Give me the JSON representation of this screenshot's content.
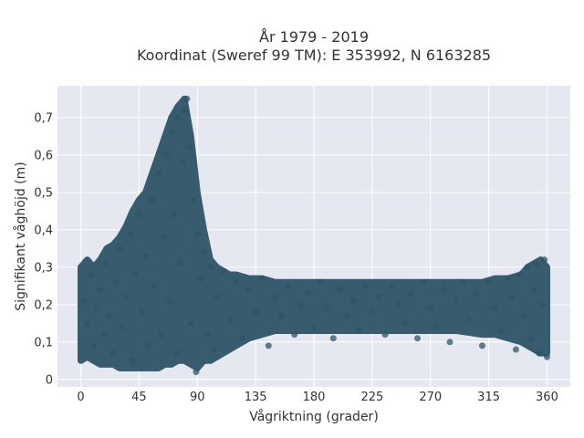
{
  "chart_data": {
    "type": "scatter",
    "title": "År 1979 - 2019",
    "subtitle": "Koordinat (Sweref 99 TM): E 353992, N 6163285",
    "xlabel": "Vågriktning (grader)",
    "ylabel": "Signifikant våghöjd (m)",
    "xlim": [
      -18,
      378
    ],
    "ylim": [
      -0.02,
      0.785
    ],
    "xticks": [
      0,
      45,
      90,
      135,
      180,
      225,
      270,
      315,
      360
    ],
    "xtick_labels": [
      "0",
      "45",
      "90",
      "135",
      "180",
      "225",
      "270",
      "315",
      "360"
    ],
    "yticks": [
      0,
      0.1,
      0.2,
      0.3,
      0.4,
      0.5,
      0.6,
      0.7
    ],
    "ytick_labels": [
      "0",
      "0,1",
      "0,2",
      "0,3",
      "0,4",
      "0,5",
      "0,6",
      "0,7"
    ],
    "grid": true,
    "marker_color": "#2f5468",
    "background_color": "#e5e8f0",
    "envelope": {
      "x": [
        0,
        5,
        10,
        15,
        20,
        25,
        30,
        35,
        40,
        45,
        50,
        55,
        60,
        65,
        70,
        75,
        80,
        85,
        90,
        95,
        100,
        105,
        110,
        115,
        120,
        130,
        140,
        150,
        160,
        180,
        200,
        225,
        250,
        270,
        290,
        310,
        320,
        330,
        340,
        345,
        350,
        355,
        360
      ],
      "y_low": [
        0.05,
        0.06,
        0.05,
        0.04,
        0.04,
        0.04,
        0.03,
        0.03,
        0.03,
        0.03,
        0.03,
        0.03,
        0.03,
        0.04,
        0.04,
        0.05,
        0.05,
        0.04,
        0.03,
        0.05,
        0.05,
        0.06,
        0.07,
        0.08,
        0.09,
        0.11,
        0.12,
        0.13,
        0.13,
        0.13,
        0.13,
        0.13,
        0.13,
        0.13,
        0.13,
        0.12,
        0.12,
        0.11,
        0.1,
        0.09,
        0.08,
        0.07,
        0.07
      ],
      "y_high": [
        0.3,
        0.32,
        0.3,
        0.32,
        0.35,
        0.36,
        0.38,
        0.41,
        0.45,
        0.48,
        0.5,
        0.55,
        0.6,
        0.65,
        0.7,
        0.73,
        0.75,
        0.65,
        0.5,
        0.4,
        0.32,
        0.3,
        0.29,
        0.28,
        0.28,
        0.27,
        0.27,
        0.26,
        0.26,
        0.26,
        0.26,
        0.26,
        0.26,
        0.26,
        0.26,
        0.26,
        0.27,
        0.27,
        0.28,
        0.3,
        0.31,
        0.32,
        0.3
      ]
    },
    "points": [
      {
        "x": 2,
        "y": 0.21
      },
      {
        "x": 5,
        "y": 0.15
      },
      {
        "x": 8,
        "y": 0.28
      },
      {
        "x": 10,
        "y": 0.09
      },
      {
        "x": 12,
        "y": 0.19
      },
      {
        "x": 15,
        "y": 0.24
      },
      {
        "x": 18,
        "y": 0.12
      },
      {
        "x": 20,
        "y": 0.31
      },
      {
        "x": 22,
        "y": 0.17
      },
      {
        "x": 25,
        "y": 0.07
      },
      {
        "x": 27,
        "y": 0.26
      },
      {
        "x": 30,
        "y": 0.35
      },
      {
        "x": 32,
        "y": 0.14
      },
      {
        "x": 35,
        "y": 0.22
      },
      {
        "x": 38,
        "y": 0.39
      },
      {
        "x": 40,
        "y": 0.05
      },
      {
        "x": 42,
        "y": 0.28
      },
      {
        "x": 45,
        "y": 0.44
      },
      {
        "x": 47,
        "y": 0.18
      },
      {
        "x": 50,
        "y": 0.33
      },
      {
        "x": 52,
        "y": 0.09
      },
      {
        "x": 55,
        "y": 0.48
      },
      {
        "x": 57,
        "y": 0.25
      },
      {
        "x": 60,
        "y": 0.55
      },
      {
        "x": 62,
        "y": 0.12
      },
      {
        "x": 64,
        "y": 0.38
      },
      {
        "x": 66,
        "y": 0.6
      },
      {
        "x": 68,
        "y": 0.21
      },
      {
        "x": 70,
        "y": 0.66
      },
      {
        "x": 72,
        "y": 0.44
      },
      {
        "x": 74,
        "y": 0.07
      },
      {
        "x": 75,
        "y": 0.7
      },
      {
        "x": 77,
        "y": 0.31
      },
      {
        "x": 79,
        "y": 0.58
      },
      {
        "x": 80,
        "y": 0.72
      },
      {
        "x": 82,
        "y": 0.75
      },
      {
        "x": 84,
        "y": 0.62
      },
      {
        "x": 85,
        "y": 0.15
      },
      {
        "x": 87,
        "y": 0.48
      },
      {
        "x": 89,
        "y": 0.02
      },
      {
        "x": 90,
        "y": 0.39
      },
      {
        "x": 93,
        "y": 0.27
      },
      {
        "x": 95,
        "y": 0.34
      },
      {
        "x": 98,
        "y": 0.12
      },
      {
        "x": 100,
        "y": 0.3
      },
      {
        "x": 103,
        "y": 0.08
      },
      {
        "x": 105,
        "y": 0.22
      },
      {
        "x": 110,
        "y": 0.29
      },
      {
        "x": 115,
        "y": 0.16
      },
      {
        "x": 120,
        "y": 0.26
      },
      {
        "x": 125,
        "y": 0.11
      },
      {
        "x": 130,
        "y": 0.24
      },
      {
        "x": 135,
        "y": 0.18
      },
      {
        "x": 140,
        "y": 0.27
      },
      {
        "x": 145,
        "y": 0.09
      },
      {
        "x": 150,
        "y": 0.22
      },
      {
        "x": 155,
        "y": 0.17
      },
      {
        "x": 160,
        "y": 0.25
      },
      {
        "x": 165,
        "y": 0.12
      },
      {
        "x": 170,
        "y": 0.2
      },
      {
        "x": 175,
        "y": 0.23
      },
      {
        "x": 180,
        "y": 0.14
      },
      {
        "x": 185,
        "y": 0.26
      },
      {
        "x": 190,
        "y": 0.19
      },
      {
        "x": 195,
        "y": 0.11
      },
      {
        "x": 200,
        "y": 0.24
      },
      {
        "x": 205,
        "y": 0.17
      },
      {
        "x": 210,
        "y": 0.21
      },
      {
        "x": 215,
        "y": 0.13
      },
      {
        "x": 220,
        "y": 0.25
      },
      {
        "x": 225,
        "y": 0.18
      },
      {
        "x": 230,
        "y": 0.22
      },
      {
        "x": 235,
        "y": 0.12
      },
      {
        "x": 240,
        "y": 0.25
      },
      {
        "x": 245,
        "y": 0.2
      },
      {
        "x": 250,
        "y": 0.15
      },
      {
        "x": 255,
        "y": 0.23
      },
      {
        "x": 260,
        "y": 0.11
      },
      {
        "x": 265,
        "y": 0.26
      },
      {
        "x": 270,
        "y": 0.19
      },
      {
        "x": 275,
        "y": 0.14
      },
      {
        "x": 280,
        "y": 0.24
      },
      {
        "x": 285,
        "y": 0.1
      },
      {
        "x": 290,
        "y": 0.21
      },
      {
        "x": 295,
        "y": 0.26
      },
      {
        "x": 300,
        "y": 0.16
      },
      {
        "x": 305,
        "y": 0.23
      },
      {
        "x": 310,
        "y": 0.09
      },
      {
        "x": 315,
        "y": 0.26
      },
      {
        "x": 320,
        "y": 0.19
      },
      {
        "x": 325,
        "y": 0.13
      },
      {
        "x": 330,
        "y": 0.27
      },
      {
        "x": 333,
        "y": 0.22
      },
      {
        "x": 336,
        "y": 0.08
      },
      {
        "x": 339,
        "y": 0.28
      },
      {
        "x": 342,
        "y": 0.17
      },
      {
        "x": 345,
        "y": 0.3
      },
      {
        "x": 348,
        "y": 0.11
      },
      {
        "x": 350,
        "y": 0.24
      },
      {
        "x": 352,
        "y": 0.31
      },
      {
        "x": 354,
        "y": 0.07
      },
      {
        "x": 356,
        "y": 0.2
      },
      {
        "x": 358,
        "y": 0.32
      },
      {
        "x": 360,
        "y": 0.06
      }
    ]
  }
}
